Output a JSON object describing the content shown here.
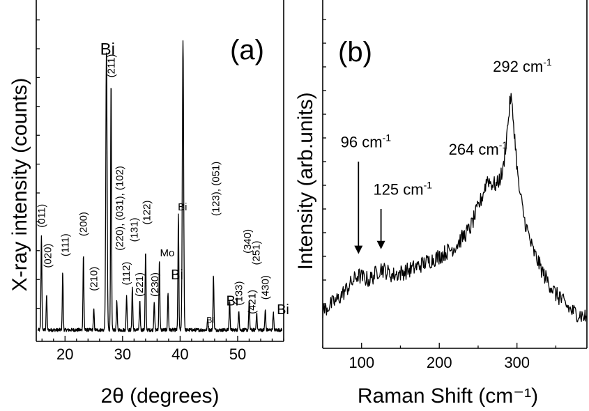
{
  "chart_data": [
    {
      "type": "line",
      "panel_label": "(a)",
      "xlabel": "2θ (degrees)",
      "ylabel": "X-ray intensity (counts)",
      "xlim": [
        15,
        58
      ],
      "ylim": [
        0,
        1
      ],
      "xticks": [
        20,
        30,
        40,
        50
      ],
      "baseline": 0.025,
      "peaks": [
        {
          "x": 15.9,
          "h": 0.33
        },
        {
          "x": 16.8,
          "h": 0.12
        },
        {
          "x": 19.6,
          "h": 0.2
        },
        {
          "x": 23.2,
          "h": 0.26
        },
        {
          "x": 25.0,
          "h": 0.07
        },
        {
          "x": 27.2,
          "h": 0.97
        },
        {
          "x": 28.0,
          "h": 0.86
        },
        {
          "x": 29.0,
          "h": 0.1
        },
        {
          "x": 30.7,
          "h": 0.12
        },
        {
          "x": 31.7,
          "h": 0.15
        },
        {
          "x": 33.0,
          "h": 0.1
        },
        {
          "x": 34.0,
          "h": 0.27
        },
        {
          "x": 35.5,
          "h": 0.1
        },
        {
          "x": 36.4,
          "h": 0.24
        },
        {
          "x": 37.9,
          "h": 0.13
        },
        {
          "x": 39.7,
          "h": 0.4
        },
        {
          "x": 40.5,
          "h": 1.0
        },
        {
          "x": 44.8,
          "h": 0.04
        },
        {
          "x": 45.8,
          "h": 0.19
        },
        {
          "x": 48.6,
          "h": 0.1
        },
        {
          "x": 50.2,
          "h": 0.07
        },
        {
          "x": 52.0,
          "h": 0.1
        },
        {
          "x": 53.3,
          "h": 0.06
        },
        {
          "x": 54.8,
          "h": 0.07
        },
        {
          "x": 56.2,
          "h": 0.06
        }
      ],
      "annotations": [
        {
          "text": "(011)",
          "x": 15.9,
          "y": 0.38,
          "rotate": true,
          "size": "small"
        },
        {
          "text": "(020)",
          "x": 17.0,
          "y": 0.24,
          "rotate": true,
          "size": "small"
        },
        {
          "text": "(111)",
          "x": 20.0,
          "y": 0.28,
          "rotate": true,
          "size": "small"
        },
        {
          "text": "(200)",
          "x": 23.2,
          "y": 0.35,
          "rotate": true,
          "size": "small"
        },
        {
          "text": "(210)",
          "x": 25.0,
          "y": 0.16,
          "rotate": true,
          "size": "small"
        },
        {
          "text": "(211)",
          "x": 28.0,
          "y": 0.9,
          "rotate": true,
          "size": "small"
        },
        {
          "text": "(220), (031), (102)",
          "x": 29.5,
          "y": 0.3,
          "rotate": true,
          "size": "small"
        },
        {
          "text": "(112)",
          "x": 30.6,
          "y": 0.18,
          "rotate": true,
          "size": "small"
        },
        {
          "text": "(131)",
          "x": 32.0,
          "y": 0.33,
          "rotate": true,
          "size": "small"
        },
        {
          "text": "(221)",
          "x": 32.9,
          "y": 0.14,
          "rotate": true,
          "size": "small"
        },
        {
          "text": "(122)",
          "x": 34.2,
          "y": 0.39,
          "rotate": true,
          "size": "small"
        },
        {
          "text": "(230)",
          "x": 35.6,
          "y": 0.14,
          "rotate": true,
          "size": "small"
        },
        {
          "text": "(123), (051)",
          "x": 46.2,
          "y": 0.42,
          "rotate": true,
          "size": "small"
        },
        {
          "text": "(133)",
          "x": 50.2,
          "y": 0.11,
          "rotate": true,
          "size": "small"
        },
        {
          "text": "(340)",
          "x": 51.7,
          "y": 0.29,
          "rotate": true,
          "size": "small"
        },
        {
          "text": "(251)",
          "x": 53.2,
          "y": 0.25,
          "rotate": true,
          "size": "small"
        },
        {
          "text": "(421)",
          "x": 52.5,
          "y": 0.08,
          "rotate": true,
          "size": "small"
        },
        {
          "text": "(430)",
          "x": 54.8,
          "y": 0.13,
          "rotate": true,
          "size": "small"
        },
        {
          "text": "Bi",
          "x": 26.1,
          "y": 0.98,
          "rotate": false,
          "size": "large"
        },
        {
          "text": "Mo",
          "x": 38.6,
          "y": 1.18,
          "rotate": false,
          "size": "large"
        },
        {
          "text": "Bi",
          "x": 39.6,
          "y": 0.44,
          "rotate": false,
          "size": "small"
        },
        {
          "text": "Mo",
          "x": 36.5,
          "y": 0.28,
          "rotate": false,
          "size": "small"
        },
        {
          "text": "Bi",
          "x": 38.4,
          "y": 0.2,
          "rotate": false,
          "size": "medium"
        },
        {
          "text": "Bi",
          "x": 44.6,
          "y": 0.05,
          "rotate": false,
          "size": "tiny"
        },
        {
          "text": "Bi",
          "x": 48.0,
          "y": 0.11,
          "rotate": false,
          "size": "medium"
        },
        {
          "text": "Bi",
          "x": 56.8,
          "y": 0.08,
          "rotate": false,
          "size": "medium"
        }
      ]
    },
    {
      "type": "line",
      "panel_label": "(b)",
      "xlabel": "Raman Shift (cm⁻¹)",
      "ylabel": "Intensity (arb.units)",
      "xlim": [
        50,
        390
      ],
      "ylim": [
        0,
        1
      ],
      "xticks": [
        100,
        200,
        300
      ],
      "profile": [
        {
          "x": 50,
          "y": 0.07
        },
        {
          "x": 70,
          "y": 0.12
        },
        {
          "x": 85,
          "y": 0.18
        },
        {
          "x": 95,
          "y": 0.22
        },
        {
          "x": 110,
          "y": 0.2
        },
        {
          "x": 125,
          "y": 0.25
        },
        {
          "x": 140,
          "y": 0.22
        },
        {
          "x": 160,
          "y": 0.24
        },
        {
          "x": 180,
          "y": 0.27
        },
        {
          "x": 200,
          "y": 0.3
        },
        {
          "x": 220,
          "y": 0.34
        },
        {
          "x": 240,
          "y": 0.42
        },
        {
          "x": 255,
          "y": 0.55
        },
        {
          "x": 262,
          "y": 0.63
        },
        {
          "x": 266,
          "y": 0.61
        },
        {
          "x": 274,
          "y": 0.6
        },
        {
          "x": 282,
          "y": 0.66
        },
        {
          "x": 288,
          "y": 0.85
        },
        {
          "x": 292,
          "y": 0.98
        },
        {
          "x": 296,
          "y": 0.85
        },
        {
          "x": 302,
          "y": 0.6
        },
        {
          "x": 310,
          "y": 0.45
        },
        {
          "x": 320,
          "y": 0.33
        },
        {
          "x": 335,
          "y": 0.22
        },
        {
          "x": 350,
          "y": 0.14
        },
        {
          "x": 370,
          "y": 0.07
        },
        {
          "x": 390,
          "y": 0.04
        }
      ],
      "spike": {
        "x": 355,
        "y": 0.15
      },
      "annotations": [
        {
          "text": "292 cm",
          "sup": "-1",
          "x": 269,
          "y": 1.08
        },
        {
          "text": "264 cm",
          "sup": "-1",
          "x": 212,
          "y": 0.73
        },
        {
          "text": "96 cm",
          "sup": "-1",
          "x": 73,
          "y": 0.76
        },
        {
          "text": "125 cm",
          "sup": "-1",
          "x": 115,
          "y": 0.56
        }
      ],
      "arrows": [
        {
          "x": 96,
          "from": 0.7,
          "to": 0.31
        },
        {
          "x": 125,
          "from": 0.5,
          "to": 0.33
        }
      ]
    }
  ]
}
